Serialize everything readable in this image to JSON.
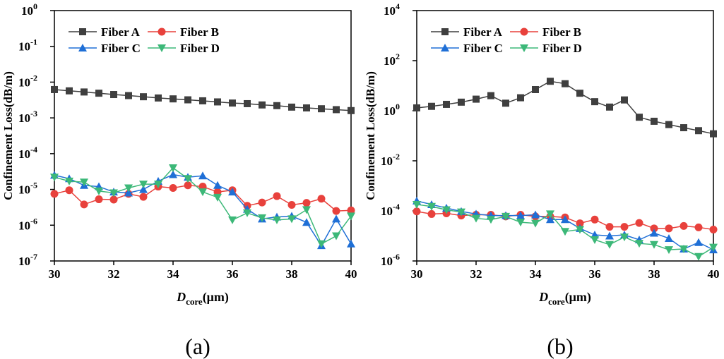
{
  "chart_data": [
    {
      "type": "line",
      "caption": "(a)",
      "ylabel": "Confinement Loss(dB/m)",
      "xlabel": "D",
      "xlabel_sub": "core",
      "xlabel_unit": "(μm)",
      "log_y": true,
      "legend": "upper-left",
      "x": [
        30,
        30.5,
        31,
        31.5,
        32,
        32.5,
        33,
        33.5,
        34,
        34.5,
        35,
        35.5,
        36,
        36.5,
        37,
        37.5,
        38,
        38.5,
        39,
        39.5,
        40
      ],
      "xlim": [
        30,
        40
      ],
      "xticks": [
        30,
        32,
        34,
        36,
        38,
        40
      ],
      "ylim": [
        1e-07,
        1
      ],
      "yticks": [
        {
          "value": 1,
          "label": "10",
          "exponent": "0"
        },
        {
          "value": 0.1,
          "label": "10",
          "exponent": "-1"
        },
        {
          "value": 0.01,
          "label": "10",
          "exponent": "-2"
        },
        {
          "value": 0.001,
          "label": "10",
          "exponent": "-3"
        },
        {
          "value": 0.0001,
          "label": "10",
          "exponent": "-4"
        },
        {
          "value": 1e-05,
          "label": "10",
          "exponent": "-5"
        },
        {
          "value": 1e-06,
          "label": "10",
          "exponent": "-6"
        },
        {
          "value": 1e-07,
          "label": "10",
          "exponent": "-7"
        }
      ],
      "series": [
        {
          "name": "Fiber A",
          "color": "#3f3f3f",
          "marker": "square",
          "values": [
            0.0062,
            0.0057,
            0.0053,
            0.0049,
            0.0045,
            0.0042,
            0.0039,
            0.0036,
            0.0034,
            0.0032,
            0.003,
            0.0028,
            0.0026,
            0.0025,
            0.0023,
            0.0022,
            0.002,
            0.0019,
            0.0018,
            0.0017,
            0.0016
          ]
        },
        {
          "name": "Fiber B",
          "color": "#e8413c",
          "marker": "circle",
          "values": [
            7.5e-06,
            9.5e-06,
            3.8e-06,
            5.3e-06,
            5.2e-06,
            7.5e-06,
            6.2e-06,
            1.2e-05,
            1.1e-05,
            1.3e-05,
            1.2e-05,
            8.5e-06,
            9.5e-06,
            3.5e-06,
            4.3e-06,
            6.5e-06,
            3.7e-06,
            4.2e-06,
            5.5e-06,
            2.5e-06,
            2.6e-06
          ]
        },
        {
          "name": "Fiber C",
          "color": "#1f6fd6",
          "marker": "triangle-up",
          "values": [
            2.5e-05,
            2e-05,
            1.3e-05,
            1.2e-05,
            8.5e-06,
            8e-06,
            1e-05,
            1.7e-05,
            2.6e-05,
            2.2e-05,
            2.4e-05,
            1.3e-05,
            8.5e-06,
            2.8e-06,
            1.5e-06,
            1.7e-06,
            1.8e-06,
            1.2e-06,
            2.7e-07,
            1.5e-06,
            3e-07
          ]
        },
        {
          "name": "Fiber D",
          "color": "#3cb878",
          "marker": "triangle-down",
          "values": [
            2.2e-05,
            1.7e-05,
            1.6e-05,
            9e-06,
            8e-06,
            1.1e-05,
            1.4e-05,
            1.4e-05,
            4e-05,
            2e-05,
            8.5e-06,
            6e-06,
            1.4e-06,
            2.2e-06,
            1.6e-06,
            1.4e-06,
            1.5e-06,
            2.7e-06,
            3e-07,
            5e-07,
            1.8e-06
          ]
        }
      ]
    },
    {
      "type": "line",
      "caption": "(b)",
      "ylabel": "Confinement Loss(dB/m)",
      "xlabel": "D",
      "xlabel_sub": "core",
      "xlabel_unit": "(μm)",
      "log_y": true,
      "legend": "upper-left",
      "x": [
        30,
        30.5,
        31,
        31.5,
        32,
        32.5,
        33,
        33.5,
        34,
        34.5,
        35,
        35.5,
        36,
        36.5,
        37,
        37.5,
        38,
        38.5,
        39,
        39.5,
        40
      ],
      "xlim": [
        30,
        40
      ],
      "xticks": [
        30,
        32,
        34,
        36,
        38,
        40
      ],
      "ylim": [
        1e-06,
        10000
      ],
      "yticks": [
        {
          "value": 10000,
          "label": "10",
          "exponent": "4"
        },
        {
          "value": 100,
          "label": "10",
          "exponent": "2"
        },
        {
          "value": 1,
          "label": "10",
          "exponent": "0"
        },
        {
          "value": 0.01,
          "label": "10",
          "exponent": "-2"
        },
        {
          "value": 0.0001,
          "label": "10",
          "exponent": "-4"
        },
        {
          "value": 1e-06,
          "label": "10",
          "exponent": "-6"
        }
      ],
      "series": [
        {
          "name": "Fiber A",
          "color": "#3f3f3f",
          "marker": "square",
          "values": [
            1.3,
            1.5,
            1.8,
            2.2,
            2.9,
            4.0,
            2.0,
            3.3,
            7,
            15,
            12,
            5,
            2.3,
            1.4,
            2.7,
            0.55,
            0.38,
            0.28,
            0.21,
            0.16,
            0.12
          ]
        },
        {
          "name": "Fiber B",
          "color": "#e8413c",
          "marker": "circle",
          "values": [
            9.5e-05,
            7.5e-05,
            8e-05,
            6.5e-05,
            7e-05,
            7e-05,
            6e-05,
            7e-05,
            6e-05,
            6e-05,
            5.5e-05,
            3.2e-05,
            4.5e-05,
            2.3e-05,
            2.3e-05,
            3.3e-05,
            2e-05,
            2e-05,
            2.5e-05,
            2.2e-05,
            1.8e-05
          ]
        },
        {
          "name": "Fiber C",
          "color": "#1f6fd6",
          "marker": "triangle-up",
          "values": [
            0.00025,
            0.00018,
            0.00013,
            9.5e-05,
            7.5e-05,
            6.5e-05,
            6.5e-05,
            6.5e-05,
            7e-05,
            4.5e-05,
            4.5e-05,
            2e-05,
            1.1e-05,
            1e-05,
            1.1e-05,
            7e-06,
            1.3e-05,
            8e-06,
            3e-06,
            5.5e-06,
            2.8e-06
          ]
        },
        {
          "name": "Fiber D",
          "color": "#3cb878",
          "marker": "triangle-down",
          "values": [
            0.00018,
            0.00015,
            0.00011,
            9e-05,
            5e-05,
            4.5e-05,
            6e-05,
            3.5e-05,
            3.2e-05,
            7.5e-05,
            1.5e-05,
            1.8e-05,
            7e-06,
            4.5e-06,
            9e-06,
            5e-06,
            4.5e-06,
            2.8e-06,
            3e-06,
            1.5e-06,
            3.5e-06
          ]
        }
      ]
    }
  ]
}
